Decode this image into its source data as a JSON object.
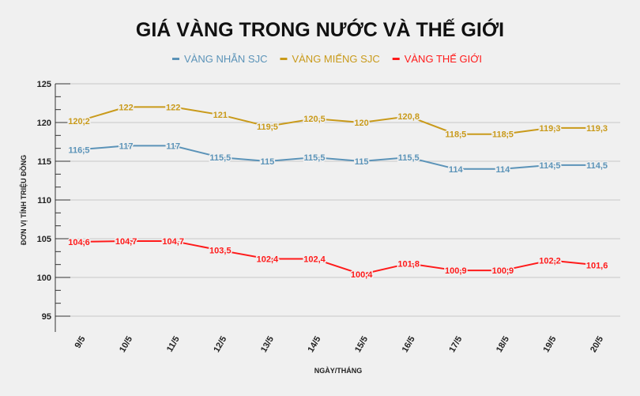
{
  "chart_data": {
    "type": "line",
    "title": "GIÁ VÀNG TRONG NƯỚC VÀ THẾ GIỚI",
    "xlabel": "NGÀY/THÁNG",
    "ylabel": "ĐƠN VỊ TÍNH TRIỆU ĐỒNG",
    "ylim": [
      95,
      125
    ],
    "yticks": [
      95,
      100,
      105,
      110,
      115,
      120,
      125
    ],
    "grid": true,
    "legend_position": "top",
    "categories": [
      "9/5",
      "10/5",
      "11/5",
      "12/5",
      "13/5",
      "14/5",
      "15/5",
      "16/5",
      "17/5",
      "18/5",
      "19/5",
      "20/5"
    ],
    "series": [
      {
        "name": "VÀNG NHẪN SJC",
        "color": "#5b93b8",
        "values": [
          116.5,
          117,
          117,
          115.5,
          115,
          115.5,
          115,
          115.5,
          114,
          114,
          114.5,
          114.5
        ]
      },
      {
        "name": "VÀNG MIẾNG SJC",
        "color": "#c99a1a",
        "values": [
          120.2,
          122,
          122,
          121,
          119.5,
          120.5,
          120,
          120.8,
          118.5,
          118.5,
          119.3,
          119.3
        ]
      },
      {
        "name": "VÀNG THẾ GIỚI",
        "color": "#ff1a1a",
        "values": [
          104.6,
          104.7,
          104.7,
          103.5,
          102.4,
          102.4,
          100.4,
          101.8,
          100.9,
          100.9,
          102.2,
          101.6
        ]
      }
    ]
  }
}
